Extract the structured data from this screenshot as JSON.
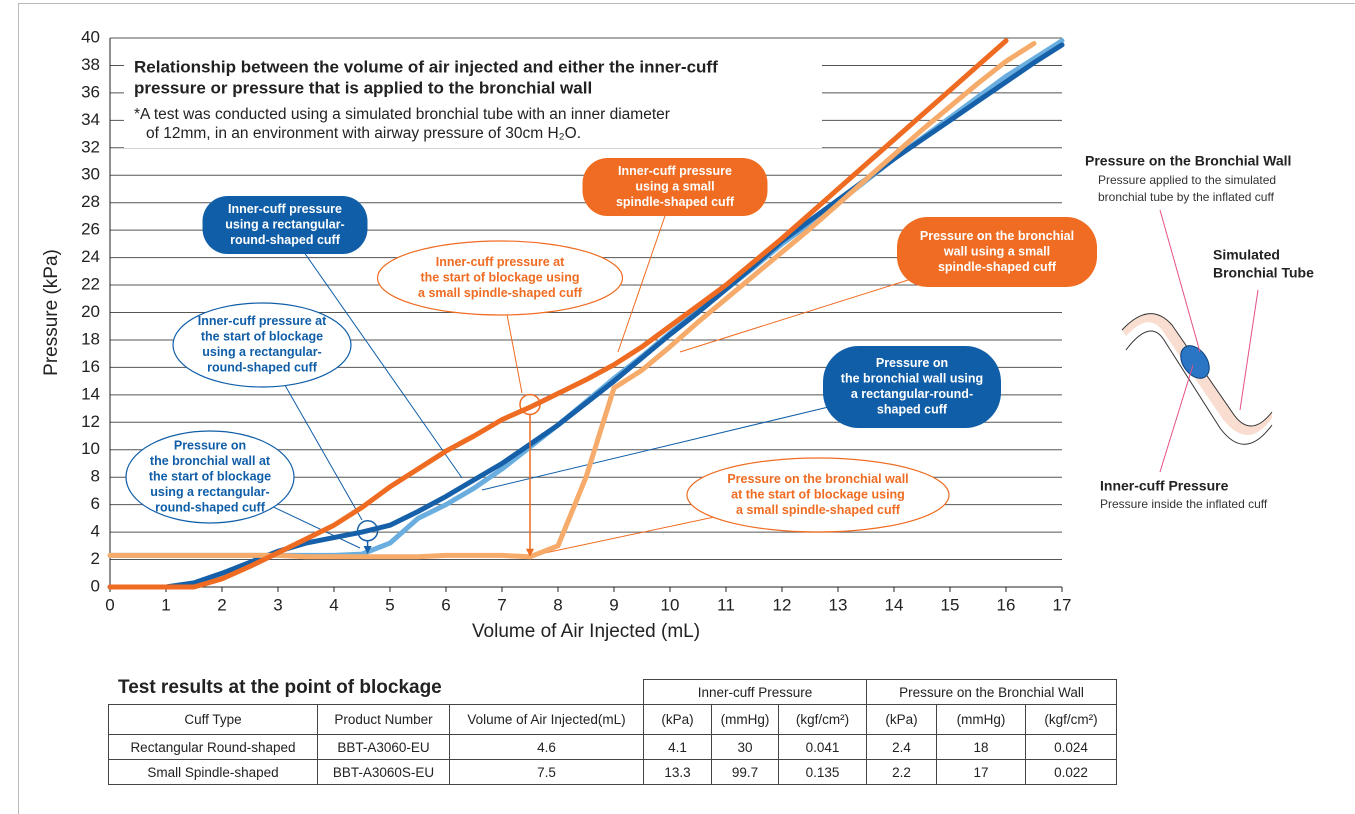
{
  "chart_data": {
    "type": "line",
    "title": [
      "Relationship between the volume of air injected and either the inner-cuff",
      "pressure or pressure that is applied to the bronchial wall"
    ],
    "note": [
      "*A test was conducted using a simulated bronchial tube with an inner diameter",
      "of 12mm, in an environment with airway pressure of 30cm H₂O."
    ],
    "xlabel": "Volume of Air Injected (mL)",
    "ylabel": "Pressure (kPa)",
    "x": [
      0,
      0.5,
      1,
      1.5,
      2,
      2.5,
      3,
      3.5,
      4,
      4.5,
      5,
      5.5,
      6,
      6.5,
      7,
      7.5,
      8,
      8.5,
      9,
      9.5,
      10,
      10.5,
      11,
      11.5,
      12,
      12.5,
      13,
      13.5,
      14,
      14.5,
      15,
      15.5,
      16,
      16.5,
      17
    ],
    "series": [
      {
        "color": "#ee6b21",
        "values": [
          0,
          0,
          0,
          0,
          0.6,
          1.5,
          2.5,
          3.5,
          4.5,
          5.8,
          7.3,
          8.6,
          9.9,
          11,
          12.2,
          13.1,
          14.1,
          15.1,
          16.2,
          17.5,
          19,
          20.5,
          22,
          23.7,
          25.4,
          27.2,
          29,
          30.8,
          32.6,
          34.4,
          36.2,
          38,
          39.8,
          null,
          null
        ]
      },
      {
        "color": "#1560a8",
        "values": [
          0,
          0,
          0,
          0.3,
          1,
          1.8,
          2.6,
          3.2,
          3.6,
          4.0,
          4.5,
          5.5,
          6.6,
          7.8,
          9,
          10.4,
          11.8,
          13.4,
          15,
          16.7,
          18.4,
          20,
          21.7,
          23.4,
          25.2,
          26.7,
          28.2,
          29.7,
          31.2,
          32.6,
          34,
          35.4,
          36.8,
          38.2,
          39.5
        ]
      },
      {
        "color": "#6aaee0",
        "values": [
          2.3,
          2.3,
          2.3,
          2.3,
          2.3,
          2.3,
          2.3,
          2.3,
          2.3,
          2.4,
          3.2,
          5,
          6,
          7.2,
          8.6,
          10.2,
          11.8,
          13.5,
          15.2,
          16.8,
          18.5,
          20.1,
          21.7,
          23.3,
          25,
          26.5,
          28,
          29.6,
          31.2,
          32.7,
          34.2,
          35.7,
          37.2,
          38.5,
          39.8
        ]
      },
      {
        "color": "#f6ab6a",
        "values": [
          2.3,
          2.3,
          2.3,
          2.3,
          2.3,
          2.3,
          2.3,
          2.2,
          2.2,
          2.2,
          2.2,
          2.2,
          2.3,
          2.3,
          2.3,
          2.2,
          3,
          8,
          14.5,
          15.8,
          17.5,
          19.3,
          21,
          22.7,
          24.4,
          26.1,
          27.9,
          29.7,
          31.5,
          33.3,
          35,
          36.7,
          38.3,
          39.6,
          null
        ]
      }
    ],
    "xlim": [
      0,
      17
    ],
    "xticks": [
      0,
      1,
      2,
      3,
      4,
      5,
      6,
      7,
      8,
      9,
      10,
      11,
      12,
      13,
      14,
      15,
      16,
      17
    ],
    "ylim": [
      0,
      40
    ],
    "yticks": [
      0,
      2,
      4,
      6,
      8,
      10,
      12,
      14,
      16,
      18,
      20,
      22,
      24,
      26,
      28,
      30,
      32,
      34,
      36,
      38,
      40
    ],
    "grid": true,
    "annotations": [
      {
        "lines": [
          "Inner-cuff pressure",
          "using a rectangular-",
          "round-shaped cuff"
        ],
        "color": "#105ea8",
        "filled": true
      },
      {
        "lines": [
          "Inner-cuff pressure at",
          "the start of blockage",
          "using a rectangular-",
          "round-shaped cuff"
        ],
        "color": "#105ea8",
        "filled": false
      },
      {
        "lines": [
          "Pressure on",
          "the bronchial wall at",
          "the start of blockage",
          "using a rectangular-",
          "round-shaped cuff"
        ],
        "color": "#105ea8",
        "filled": false
      },
      {
        "lines": [
          "Pressure on",
          "the bronchial wall using",
          "a rectangular-round-",
          "shaped cuff"
        ],
        "color": "#105ea8",
        "filled": true
      },
      {
        "lines": [
          "Inner-cuff pressure",
          "using a small",
          "spindle-shaped cuff"
        ],
        "color": "#ef6c22",
        "filled": true
      },
      {
        "lines": [
          "Inner-cuff pressure at",
          "the start of blockage using",
          "a small spindle-shaped cuff"
        ],
        "color": "#ef6c22",
        "filled": false
      },
      {
        "lines": [
          "Pressure on the bronchial",
          "wall using a small",
          "spindle-shaped cuff"
        ],
        "color": "#ef6c22",
        "filled": true
      },
      {
        "lines": [
          "Pressure on the bronchial wall",
          "at the start of blockage using",
          "a small spindle-shaped cuff"
        ],
        "color": "#ef6c22",
        "filled": false
      }
    ]
  },
  "table": {
    "title": "Test results at the point of blockage",
    "groups": [
      "Inner-cuff Pressure",
      "Pressure on the Bronchial Wall"
    ],
    "headers": [
      "Cuff Type",
      "Product Number",
      "Volume of Air Injected(mL)",
      "(kPa)",
      "(mmHg)",
      "(kgf/cm²)",
      "(kPa)",
      "(mmHg)",
      "(kgf/cm²)"
    ],
    "rows": [
      [
        "Rectangular Round-shaped",
        "BBT-A3060-EU",
        4.6,
        4.1,
        30,
        0.041,
        2.4,
        18,
        0.024
      ],
      [
        "Small Spindle-shaped",
        "BBT-A3060S-EU",
        7.5,
        13.3,
        99.7,
        0.135,
        2.2,
        17,
        0.022
      ]
    ]
  },
  "diagram": {
    "wall_title": "Pressure on the Bronchial Wall",
    "wall_desc": [
      "Pressure applied to the simulated",
      "bronchial tube by the inflated cuff"
    ],
    "tube_label": [
      "Simulated",
      "Bronchial Tube"
    ],
    "cuff_title": "Inner-cuff Pressure",
    "cuff_desc": "Pressure inside the inflated cuff"
  }
}
